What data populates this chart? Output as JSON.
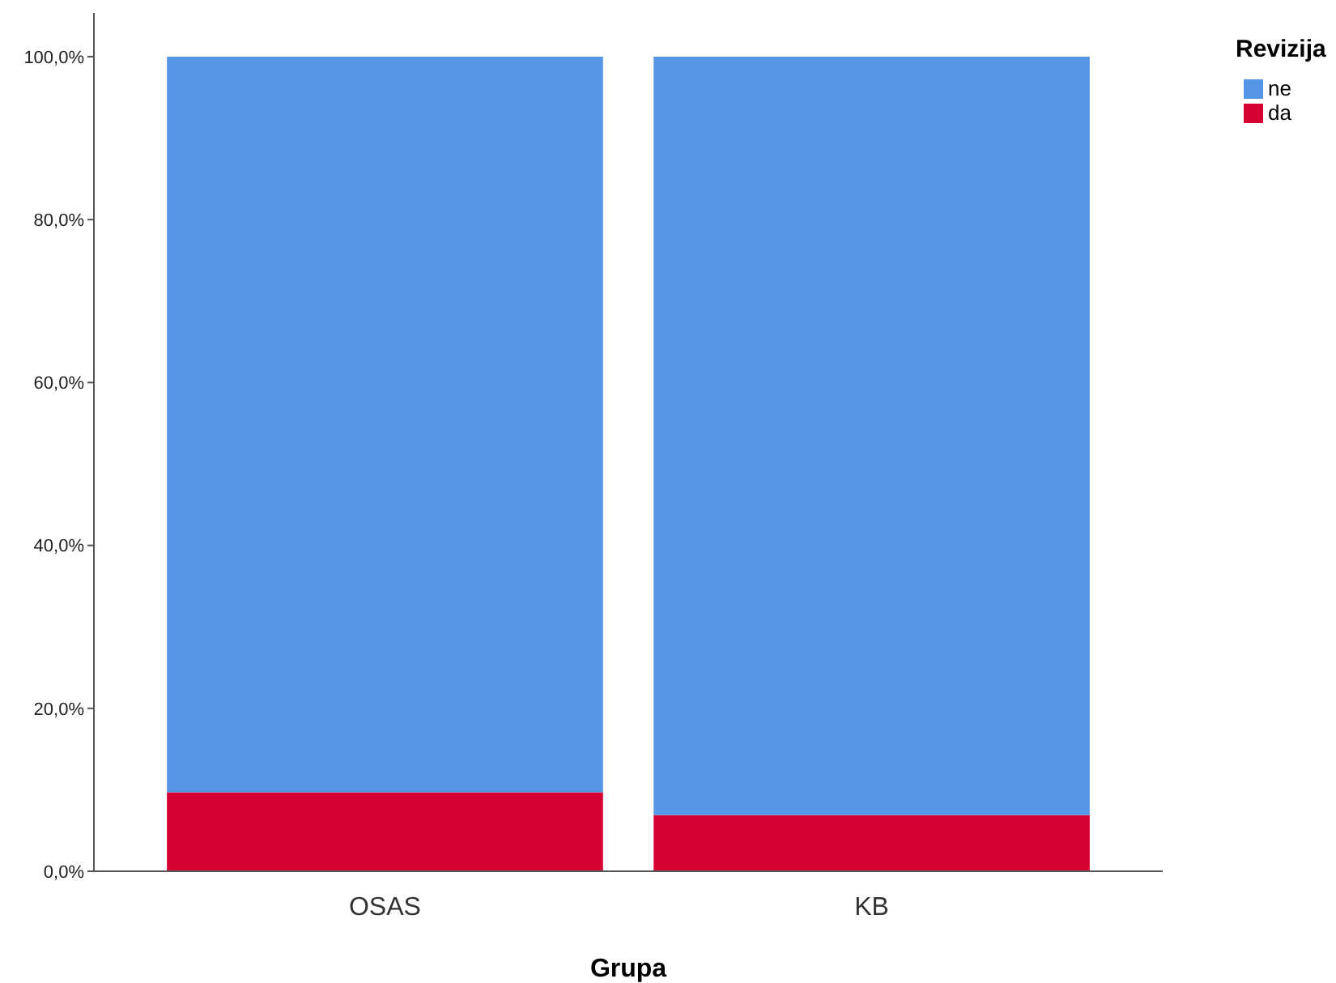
{
  "chart_data": {
    "type": "bar",
    "stacked": true,
    "xlabel": "Grupa",
    "legend_title": "Revizija",
    "legend": "top right",
    "grid": false,
    "categories": [
      "OSAS",
      "KB"
    ],
    "series": [
      {
        "name": "da",
        "color": "#d70032",
        "values": [
          9.7,
          6.9
        ]
      },
      {
        "name": "ne",
        "color": "#5596e6",
        "values": [
          90.3,
          93.1
        ]
      }
    ],
    "ylim": [
      0,
      100
    ],
    "yticks": [
      {
        "value": 0,
        "label": "0,0%"
      },
      {
        "value": 20,
        "label": "20,0%"
      },
      {
        "value": 40,
        "label": "40,0%"
      },
      {
        "value": 60,
        "label": "60,0%"
      },
      {
        "value": 80,
        "label": "80,0%"
      },
      {
        "value": 100,
        "label": "100,0%"
      }
    ]
  }
}
